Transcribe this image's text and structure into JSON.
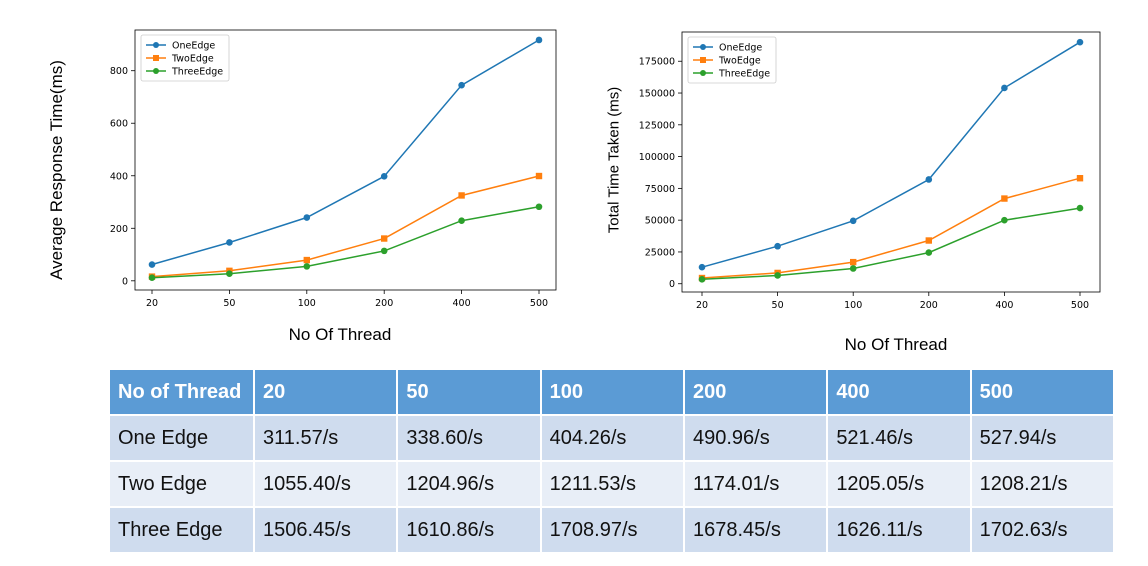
{
  "chart_data": [
    {
      "type": "line",
      "x": [
        20,
        50,
        100,
        200,
        400,
        500
      ],
      "x_tick_labels": [
        "20",
        "50",
        "100",
        "200",
        "400",
        "500"
      ],
      "series": [
        {
          "name": "OneEdge",
          "values": [
            62,
            146,
            241,
            398,
            745,
            917
          ],
          "color": "#1f77b4",
          "marker": "circle"
        },
        {
          "name": "TwoEdge",
          "values": [
            16,
            38,
            79,
            161,
            325,
            399
          ],
          "color": "#ff7f0e",
          "marker": "square"
        },
        {
          "name": "ThreeEdge",
          "values": [
            12,
            27,
            55,
            114,
            229,
            282
          ],
          "color": "#2ca02c",
          "marker": "circle"
        }
      ],
      "xlabel": "No Of Thread",
      "ylabel": "Average Response Time(ms)",
      "ylim": [
        -35,
        955
      ],
      "yticks": [
        0,
        200,
        400,
        600,
        800
      ],
      "legend": "top-left",
      "grid": false
    },
    {
      "type": "line",
      "x": [
        20,
        50,
        100,
        200,
        400,
        500
      ],
      "x_tick_labels": [
        "20",
        "50",
        "100",
        "200",
        "400",
        "500"
      ],
      "series": [
        {
          "name": "OneEdge",
          "values": [
            13000,
            29500,
            49500,
            82000,
            154000,
            190000
          ],
          "color": "#1f77b4",
          "marker": "circle"
        },
        {
          "name": "TwoEdge",
          "values": [
            4500,
            8500,
            17000,
            34000,
            67000,
            83000
          ],
          "color": "#ff7f0e",
          "marker": "square"
        },
        {
          "name": "ThreeEdge",
          "values": [
            3500,
            6500,
            12000,
            24500,
            50000,
            59500
          ],
          "color": "#2ca02c",
          "marker": "circle"
        }
      ],
      "xlabel": "No Of Thread",
      "ylabel": "Total Time Taken (ms)",
      "ylim": [
        -6500,
        198000
      ],
      "yticks": [
        0,
        25000,
        50000,
        75000,
        100000,
        125000,
        150000,
        175000
      ],
      "legend": "top-left",
      "grid": false
    }
  ],
  "table": {
    "headers": [
      "No of Thread",
      "20",
      "50",
      "100",
      "200",
      "400",
      "500"
    ],
    "rows": [
      [
        "One Edge",
        "311.57/s",
        "338.60/s",
        "404.26/s",
        "490.96/s",
        "521.46/s",
        "527.94/s"
      ],
      [
        "Two Edge",
        "1055.40/s",
        "1204.96/s",
        "1211.53/s",
        "1174.01/s",
        "1205.05/s",
        "1208.21/s"
      ],
      [
        "Three Edge",
        "1506.45/s",
        "1610.86/s",
        "1708.97/s",
        "1678.45/s",
        "1626.11/s",
        "1702.63/s"
      ]
    ]
  }
}
